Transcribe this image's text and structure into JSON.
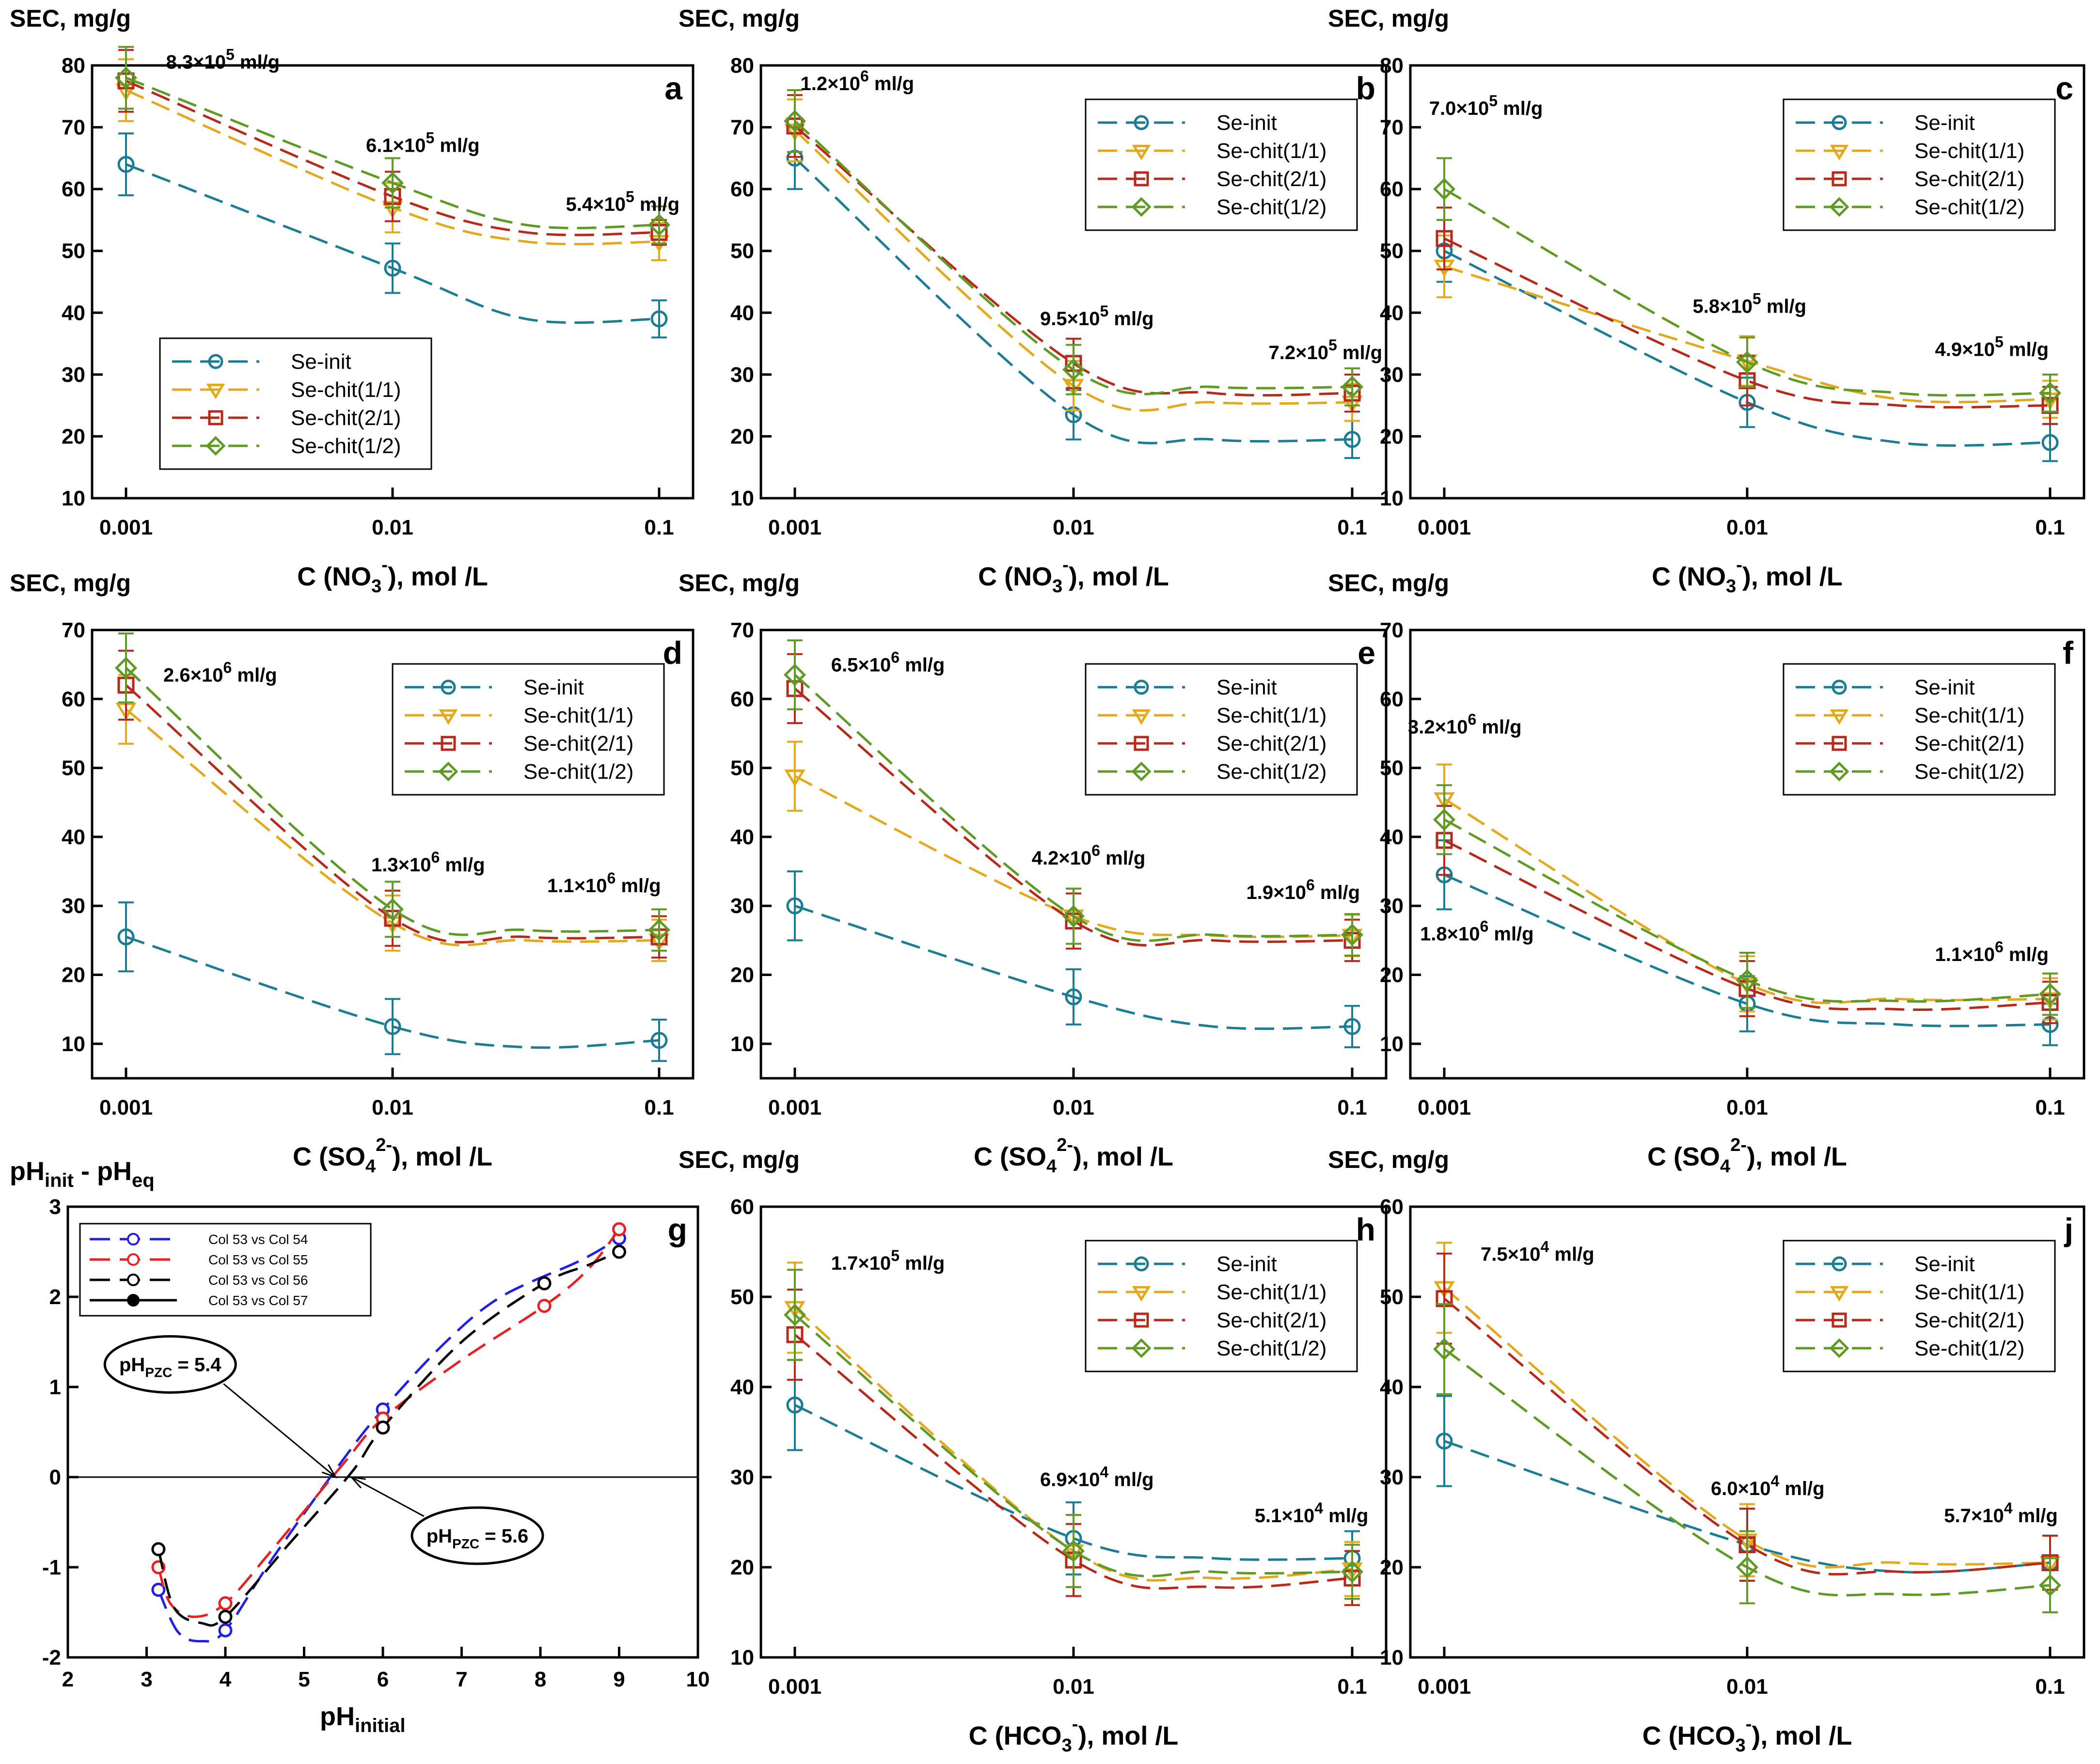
{
  "series_styles": {
    "Se-init": {
      "color": "#1a7d93",
      "marker": "circle"
    },
    "Se-chit(1/1)": {
      "color": "#e3a81c",
      "marker": "tri-down"
    },
    "Se-chit(2/1)": {
      "color": "#b7291a",
      "marker": "square"
    },
    "Se-chit(1/2)": {
      "color": "#5f9a24",
      "marker": "diamond"
    }
  },
  "chart_data": [
    {
      "panel": "a",
      "type": "line",
      "ylabel": "SEC, mg/g",
      "xlabel": {
        "pre": "C (NO",
        "sub": "3",
        "sup": "-",
        "post": "), mol /L"
      },
      "x_ticks": [
        "0.001",
        "0.01",
        "0.1"
      ],
      "ylim": [
        10,
        80
      ],
      "y_ticks": [
        10,
        20,
        30,
        40,
        50,
        60,
        70,
        80
      ],
      "series": [
        {
          "name": "Se-init",
          "values": [
            64,
            47.2,
            39
          ],
          "errors": [
            5,
            4,
            3
          ]
        },
        {
          "name": "Se-chit(1/1)",
          "values": [
            76,
            57,
            51.5
          ],
          "errors": [
            5,
            4,
            3
          ]
        },
        {
          "name": "Se-chit(2/1)",
          "values": [
            77.5,
            58.8,
            53
          ],
          "errors": [
            5,
            4,
            2
          ]
        },
        {
          "name": "Se-chit(1/2)",
          "values": [
            78,
            61,
            54.2
          ],
          "errors": [
            5,
            4,
            3
          ]
        }
      ],
      "annotations": [
        {
          "mant": "8.3×10",
          "exp": "5",
          "unit": " ml/g",
          "x": 0.15,
          "y": 79.5
        },
        {
          "mant": "6.1×10",
          "exp": "5",
          "unit": " ml/g",
          "x": 0.9,
          "y": 66
        },
        {
          "mant": "5.4×10",
          "exp": "5",
          "unit": " ml/g",
          "x": 1.65,
          "y": 56.5
        }
      ],
      "legend": {
        "corner": "lower-left"
      }
    },
    {
      "panel": "b",
      "type": "line",
      "ylabel": "SEC, mg/g",
      "xlabel": {
        "pre": "C (NO",
        "sub": "3",
        "sup": "-",
        "post": "), mol /L"
      },
      "x_ticks": [
        "0.001",
        "0.01",
        "0.1"
      ],
      "ylim": [
        10,
        80
      ],
      "y_ticks": [
        10,
        20,
        30,
        40,
        50,
        60,
        70,
        80
      ],
      "series": [
        {
          "name": "Se-init",
          "values": [
            65,
            23.5,
            19.5
          ],
          "errors": [
            5,
            4,
            3
          ]
        },
        {
          "name": "Se-chit(1/1)",
          "values": [
            69.5,
            28.2,
            25.5
          ],
          "errors": [
            5,
            4,
            3
          ]
        },
        {
          "name": "Se-chit(2/1)",
          "values": [
            70.2,
            31.8,
            27
          ],
          "errors": [
            5,
            4,
            3
          ]
        },
        {
          "name": "Se-chit(1/2)",
          "values": [
            71,
            30.8,
            28
          ],
          "errors": [
            5,
            4,
            3
          ]
        }
      ],
      "annotations": [
        {
          "mant": "1.2×10",
          "exp": "6",
          "unit": " ml/g",
          "x": 0.02,
          "y": 76
        },
        {
          "mant": "9.5×10",
          "exp": "5",
          "unit": " ml/g",
          "x": 0.88,
          "y": 38
        },
        {
          "mant": "7.2×10",
          "exp": "5",
          "unit": " ml/g",
          "x": 1.7,
          "y": 32.5
        }
      ],
      "legend": {
        "corner": "upper-right"
      }
    },
    {
      "panel": "c",
      "type": "line",
      "ylabel": "SEC, mg/g",
      "xlabel": {
        "pre": "C (NO",
        "sub": "3",
        "sup": "-",
        "post": "), mol /L"
      },
      "x_ticks": [
        "0.001",
        "0.01",
        "0.1"
      ],
      "ylim": [
        10,
        80
      ],
      "y_ticks": [
        10,
        20,
        30,
        40,
        50,
        60,
        70,
        80
      ],
      "series": [
        {
          "name": "Se-init",
          "values": [
            50,
            25.5,
            19
          ],
          "errors": [
            5,
            4,
            3
          ]
        },
        {
          "name": "Se-chit(1/1)",
          "values": [
            47.5,
            32.2,
            26
          ],
          "errors": [
            5,
            4,
            3
          ]
        },
        {
          "name": "Se-chit(2/1)",
          "values": [
            52,
            29,
            25
          ],
          "errors": [
            5,
            4,
            3
          ]
        },
        {
          "name": "Se-chit(1/2)",
          "values": [
            60,
            32,
            27
          ],
          "errors": [
            5,
            4,
            3
          ]
        }
      ],
      "annotations": [
        {
          "mant": "7.0×10",
          "exp": "5",
          "unit": " ml/g",
          "x": -0.05,
          "y": 72
        },
        {
          "mant": "5.8×10",
          "exp": "5",
          "unit": " ml/g",
          "x": 0.82,
          "y": 40
        },
        {
          "mant": "4.9×10",
          "exp": "5",
          "unit": " ml/g",
          "x": 1.62,
          "y": 33
        }
      ],
      "legend": {
        "corner": "upper-right"
      }
    },
    {
      "panel": "d",
      "type": "line",
      "ylabel": "SEC, mg/g",
      "xlabel": {
        "pre": "C (SO",
        "sub": "4",
        "sup": "2-",
        "post": "), mol /L"
      },
      "x_ticks": [
        "0.001",
        "0.01",
        "0.1"
      ],
      "ylim": [
        5,
        70
      ],
      "y_ticks": [
        10,
        20,
        30,
        40,
        50,
        60,
        70
      ],
      "series": [
        {
          "name": "Se-init",
          "values": [
            25.5,
            12.5,
            10.5
          ],
          "errors": [
            5,
            4,
            3
          ]
        },
        {
          "name": "Se-chit(1/1)",
          "values": [
            58.5,
            27.5,
            25
          ],
          "errors": [
            5,
            4,
            3
          ]
        },
        {
          "name": "Se-chit(2/1)",
          "values": [
            62,
            28.2,
            25.5
          ],
          "errors": [
            5,
            4,
            3
          ]
        },
        {
          "name": "Se-chit(1/2)",
          "values": [
            64.5,
            29.5,
            26.5
          ],
          "errors": [
            5,
            4,
            3
          ]
        }
      ],
      "annotations": [
        {
          "mant": "2.6×10",
          "exp": "6",
          "unit": " ml/g",
          "x": 0.14,
          "y": 62.5
        },
        {
          "mant": "1.3×10",
          "exp": "6",
          "unit": " ml/g",
          "x": 0.92,
          "y": 35
        },
        {
          "mant": "1.1×10",
          "exp": "6",
          "unit": " ml/g",
          "x": 1.58,
          "y": 32
        }
      ],
      "legend": {
        "corner": "upper-right"
      }
    },
    {
      "panel": "e",
      "type": "line",
      "ylabel": "SEC, mg/g",
      "xlabel": {
        "pre": "C (SO",
        "sub": "4",
        "sup": "2-",
        "post": "), mol /L"
      },
      "x_ticks": [
        "0.001",
        "0.01",
        "0.1"
      ],
      "ylim": [
        5,
        70
      ],
      "y_ticks": [
        10,
        20,
        30,
        40,
        50,
        60,
        70
      ],
      "series": [
        {
          "name": "Se-init",
          "values": [
            30,
            16.8,
            12.5
          ],
          "errors": [
            5,
            4,
            3
          ]
        },
        {
          "name": "Se-chit(1/1)",
          "values": [
            48.8,
            28.5,
            25.7
          ],
          "errors": [
            5,
            4,
            3
          ]
        },
        {
          "name": "Se-chit(2/1)",
          "values": [
            61.5,
            27.8,
            25
          ],
          "errors": [
            5,
            4,
            3
          ]
        },
        {
          "name": "Se-chit(1/2)",
          "values": [
            63.5,
            28.5,
            25.8
          ],
          "errors": [
            5,
            4,
            3
          ]
        }
      ],
      "annotations": [
        {
          "mant": "6.5×10",
          "exp": "6",
          "unit": " ml/g",
          "x": 0.13,
          "y": 64
        },
        {
          "mant": "4.2×10",
          "exp": "6",
          "unit": " ml/g",
          "x": 0.85,
          "y": 36
        },
        {
          "mant": "1.9×10",
          "exp": "6",
          "unit": " ml/g",
          "x": 1.62,
          "y": 31
        }
      ],
      "legend": {
        "corner": "upper-right"
      }
    },
    {
      "panel": "f",
      "type": "line",
      "ylabel": "SEC, mg/g",
      "xlabel": {
        "pre": "C (SO",
        "sub": "4",
        "sup": "2-",
        "post": "), mol /L"
      },
      "x_ticks": [
        "0.001",
        "0.01",
        "0.1"
      ],
      "ylim": [
        5,
        70
      ],
      "y_ticks": [
        10,
        20,
        30,
        40,
        50,
        60,
        70
      ],
      "series": [
        {
          "name": "Se-init",
          "values": [
            34.5,
            15.8,
            12.8
          ],
          "errors": [
            5,
            4,
            3
          ]
        },
        {
          "name": "Se-chit(1/1)",
          "values": [
            45.5,
            18.7,
            16.5
          ],
          "errors": [
            5,
            4,
            3
          ]
        },
        {
          "name": "Se-chit(2/1)",
          "values": [
            39.5,
            18,
            16
          ],
          "errors": [
            5,
            4,
            3
          ]
        },
        {
          "name": "Se-chit(1/2)",
          "values": [
            42.5,
            19.2,
            17.2
          ],
          "errors": [
            5,
            4,
            3
          ]
        }
      ],
      "annotations": [
        {
          "mant": "3.2×10",
          "exp": "6",
          "unit": " ml/g",
          "x": -0.12,
          "y": 55
        },
        {
          "mant": "1.8×10",
          "exp": "6",
          "unit": " ml/g",
          "x": -0.08,
          "y": 25,
          "rel": 1
        },
        {
          "mant": "1.1×10",
          "exp": "6",
          "unit": " ml/g",
          "x": 1.62,
          "y": 22
        }
      ],
      "legend": {
        "corner": "upper-right"
      }
    },
    {
      "panel": "h",
      "type": "line",
      "ylabel": "SEC, mg/g",
      "xlabel": {
        "pre": "C (HCO",
        "sub": "3",
        "sup": "-",
        "post": "), mol /L"
      },
      "x_ticks": [
        "0.001",
        "0.01",
        "0.1"
      ],
      "ylim": [
        10,
        60
      ],
      "y_ticks": [
        10,
        20,
        30,
        40,
        50,
        60
      ],
      "series": [
        {
          "name": "Se-init",
          "values": [
            38,
            23.2,
            21
          ],
          "errors": [
            5,
            4,
            3
          ]
        },
        {
          "name": "Se-chit(1/1)",
          "values": [
            48.8,
            21.8,
            19.8
          ],
          "errors": [
            5,
            4,
            3
          ]
        },
        {
          "name": "Se-chit(2/1)",
          "values": [
            45.8,
            20.8,
            18.8
          ],
          "errors": [
            5,
            4,
            3
          ]
        },
        {
          "name": "Se-chit(1/2)",
          "values": [
            48,
            21.8,
            19.5
          ],
          "errors": [
            5,
            4,
            3
          ]
        }
      ],
      "annotations": [
        {
          "mant": "1.7×10",
          "exp": "5",
          "unit": " ml/g",
          "x": 0.13,
          "y": 53
        },
        {
          "mant": "6.9×10",
          "exp": "4",
          "unit": " ml/g",
          "x": 0.88,
          "y": 29
        },
        {
          "mant": "5.1×10",
          "exp": "4",
          "unit": " ml/g",
          "x": 1.65,
          "y": 25
        }
      ],
      "legend": {
        "corner": "upper-right"
      }
    },
    {
      "panel": "j",
      "type": "line",
      "ylabel": "SEC, mg/g",
      "xlabel": {
        "pre": "C (HCO",
        "sub": "3",
        "sup": "-",
        "post": "), mol /L"
      },
      "x_ticks": [
        "0.001",
        "0.01",
        "0.1"
      ],
      "ylim": [
        10,
        60
      ],
      "y_ticks": [
        10,
        20,
        30,
        40,
        50,
        60
      ],
      "series": [
        {
          "name": "Se-init",
          "values": [
            34,
            22.5,
            20.5
          ],
          "errors": [
            5,
            4,
            3
          ]
        },
        {
          "name": "Se-chit(1/1)",
          "values": [
            51,
            23,
            20.5
          ],
          "errors": [
            5,
            4,
            3
          ]
        },
        {
          "name": "Se-chit(2/1)",
          "values": [
            49.8,
            22.5,
            20.5
          ],
          "errors": [
            5,
            4,
            3
          ]
        },
        {
          "name": "Se-chit(1/2)",
          "values": [
            44.2,
            20,
            18
          ],
          "errors": [
            5,
            4,
            3
          ]
        }
      ],
      "annotations": [
        {
          "mant": "7.5×10",
          "exp": "4",
          "unit": " ml/g",
          "x": 0.12,
          "y": 54
        },
        {
          "mant": "6.0×10",
          "exp": "4",
          "unit": " ml/g",
          "x": 0.88,
          "y": 28
        },
        {
          "mant": "5.7×10",
          "exp": "4",
          "unit": " ml/g",
          "x": 1.65,
          "y": 25
        }
      ],
      "legend": {
        "corner": "upper-right"
      }
    },
    {
      "panel": "g",
      "type": "line",
      "ylabel": {
        "pre1": "pH",
        "sub1": "init",
        "mid": " - pH",
        "sub2": "eq"
      },
      "xlabel": {
        "pre": "pH",
        "sub": "initial"
      },
      "x_ticks": [
        2,
        3,
        4,
        5,
        6,
        7,
        8,
        9,
        10
      ],
      "y_ticks": [
        -2,
        -1,
        0,
        1,
        2,
        3
      ],
      "xlim": [
        2,
        10
      ],
      "ylim": [
        -2,
        3
      ],
      "series": [
        {
          "name": "Col 53 vs Col 54",
          "color": "#1f1fe6",
          "dash": "long",
          "x": [
            3.15,
            4,
            6,
            9
          ],
          "y": [
            -1.25,
            -1.7,
            0.75,
            2.65
          ],
          "curve": [
            [
              3.15,
              -1.25
            ],
            [
              3.4,
              -1.72
            ],
            [
              3.7,
              -1.82
            ],
            [
              4,
              -1.7
            ],
            [
              4.6,
              -0.9
            ],
            [
              5.5,
              0.2
            ],
            [
              6,
              0.75
            ],
            [
              6.8,
              1.5
            ],
            [
              7.5,
              2.0
            ],
            [
              8.5,
              2.4
            ],
            [
              9,
              2.65
            ]
          ]
        },
        {
          "name": "Col 53 vs Col 55",
          "color": "#e82020",
          "dash": "long",
          "x": [
            3.15,
            4,
            6,
            8.05,
            9
          ],
          "y": [
            -1.0,
            -1.4,
            0.65,
            1.9,
            2.75
          ],
          "curve": [
            [
              3.15,
              -1.0
            ],
            [
              3.3,
              -1.4
            ],
            [
              3.6,
              -1.55
            ],
            [
              4,
              -1.4
            ],
            [
              4.6,
              -0.8
            ],
            [
              5.5,
              0.15
            ],
            [
              6,
              0.65
            ],
            [
              7,
              1.3
            ],
            [
              8.05,
              1.9
            ],
            [
              8.6,
              2.3
            ],
            [
              9,
              2.75
            ]
          ]
        },
        {
          "name": "Col 53 vs Col 56",
          "color": "#000000",
          "dash": "long",
          "x": [
            3.15,
            4,
            6,
            8.05,
            9
          ],
          "y": [
            -0.8,
            -1.55,
            0.55,
            2.15,
            2.5
          ],
          "curve": [
            [
              3.15,
              -0.8
            ],
            [
              3.35,
              -1.45
            ],
            [
              3.7,
              -1.62
            ],
            [
              4,
              -1.55
            ],
            [
              4.8,
              -0.75
            ],
            [
              5.6,
              0.05
            ],
            [
              6,
              0.55
            ],
            [
              7,
              1.5
            ],
            [
              8.05,
              2.15
            ],
            [
              8.6,
              2.35
            ],
            [
              9,
              2.5
            ]
          ]
        },
        {
          "name": "Col 53 vs Col 57",
          "color": "#000000",
          "dash": "solid",
          "x": [],
          "y": []
        }
      ],
      "annotations": [
        {
          "pre": "pH",
          "sub": "PZC",
          "post": " = 5.4",
          "x": 3.3,
          "y": 1.25,
          "arrow_to": [
            5.4,
            0
          ]
        },
        {
          "pre": "pH",
          "sub": "PZC",
          "post": " = 5.6",
          "x": 7.2,
          "y": -0.65,
          "arrow_to": [
            5.6,
            0
          ]
        }
      ],
      "legend": {
        "corner": "upper-left"
      }
    }
  ]
}
